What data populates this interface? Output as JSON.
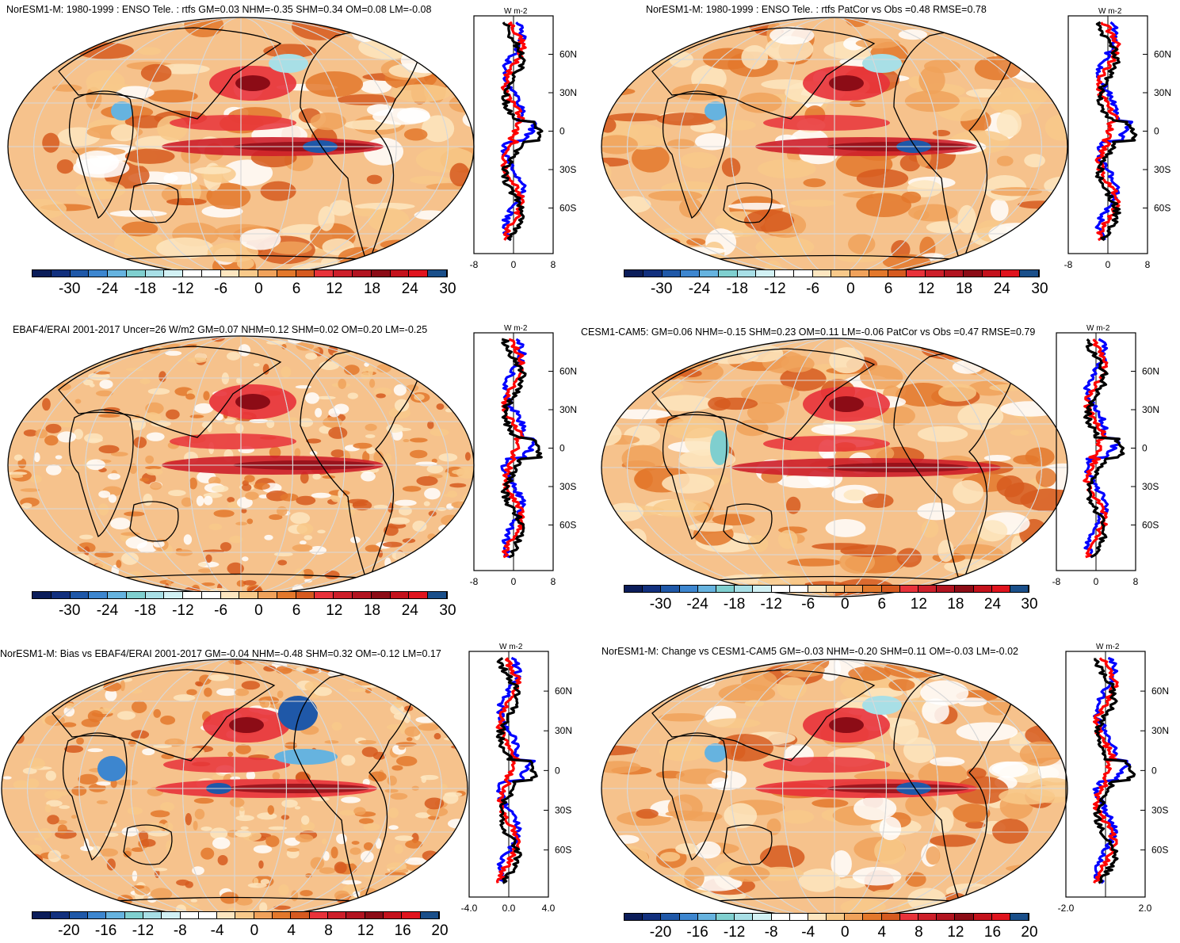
{
  "panels": [
    {
      "id": "p1",
      "title": "NorESM1-M: 1980-1999 : ENSO Tele. : rtfs GM=0.03 NHM=-0.35 SHM=0.34 OM=0.08 LM=-0.08",
      "colorbar_labels": [
        "-30",
        "-24",
        "-18",
        "-12",
        "-6",
        "0",
        "6",
        "12",
        "18",
        "24",
        "30"
      ],
      "zonal_unit": "W m-2",
      "zonal_lat_labels": [
        "60N",
        "30N",
        "0",
        "30S",
        "60S"
      ],
      "zonal_x_labels": [
        "-8",
        "0",
        "8"
      ],
      "zonal_xrange": [
        -8,
        8
      ]
    },
    {
      "id": "p2",
      "title": "NorESM1-M: 1980-1999 : ENSO Tele. : rtfs PatCor vs Obs =0.48 RMSE=0.78",
      "colorbar_labels": [
        "-30",
        "-24",
        "-18",
        "-12",
        "-6",
        "0",
        "6",
        "12",
        "18",
        "24",
        "30"
      ],
      "zonal_unit": "W m-2",
      "zonal_lat_labels": [
        "60N",
        "30N",
        "0",
        "30S",
        "60S"
      ],
      "zonal_x_labels": [
        "-8",
        "0",
        "8"
      ],
      "zonal_xrange": [
        -8,
        8
      ]
    },
    {
      "id": "p3",
      "title": "EBAF4/ERAI 2001-2017 Uncer=26 W/m2 GM=0.07 NHM=0.12 SHM=0.02 OM=0.20 LM=-0.25",
      "colorbar_labels": [
        "-30",
        "-24",
        "-18",
        "-12",
        "-6",
        "0",
        "6",
        "12",
        "18",
        "24",
        "30"
      ],
      "zonal_unit": "W m-2",
      "zonal_lat_labels": [
        "60N",
        "30N",
        "0",
        "30S",
        "60S"
      ],
      "zonal_x_labels": [
        "-8",
        "0",
        "8"
      ],
      "zonal_xrange": [
        -8,
        8
      ]
    },
    {
      "id": "p4",
      "title": "CESM1-CAM5: GM=0.06 NHM=-0.15 SHM=0.23 OM=0.11 LM=-0.06 PatCor vs Obs =0.47 RMSE=0.79",
      "colorbar_labels": [
        "-30",
        "-24",
        "-18",
        "-12",
        "-6",
        "0",
        "6",
        "12",
        "18",
        "24",
        "30"
      ],
      "zonal_unit": "W m-2",
      "zonal_lat_labels": [
        "60N",
        "30N",
        "0",
        "30S",
        "60S"
      ],
      "zonal_x_labels": [
        "-8",
        "0",
        "8"
      ],
      "zonal_xrange": [
        -8,
        8
      ]
    },
    {
      "id": "p5",
      "title": "NorESM1-M: Bias vs EBAF4/ERAI 2001-2017 GM=-0.04 NHM=-0.48 SHM=0.32 OM=-0.12 LM=0.17",
      "colorbar_labels": [
        "-20",
        "-16",
        "-12",
        "-8",
        "-4",
        "0",
        "4",
        "8",
        "12",
        "16",
        "20"
      ],
      "zonal_unit": "W m-2",
      "zonal_lat_labels": [
        "60N",
        "30N",
        "0",
        "30S",
        "60S"
      ],
      "zonal_x_labels": [
        "-4.0",
        "0.0",
        "4.0"
      ],
      "zonal_xrange": [
        -4,
        4
      ]
    },
    {
      "id": "p6",
      "title": "NorESM1-M: Change vs CESM1-CAM5 GM=-0.03 NHM=-0.20 SHM=0.11 OM=-0.03 LM=-0.02",
      "colorbar_labels": [
        "-20",
        "-16",
        "-12",
        "-8",
        "-4",
        "0",
        "4",
        "8",
        "12",
        "16",
        "20"
      ],
      "zonal_unit": "W m-2",
      "zonal_lat_labels": [
        "60N",
        "30N",
        "0",
        "30S",
        "60S"
      ],
      "zonal_x_labels": [
        "-2.0",
        "2.0"
      ],
      "zonal_xrange": [
        -2,
        2
      ]
    }
  ],
  "colors": {
    "palette": [
      "#0b1d5a",
      "#12307e",
      "#1f58a8",
      "#3d86cf",
      "#66b3df",
      "#7fcfcf",
      "#a8dfe6",
      "#d2f1f4",
      "#ffffff",
      "#ffffff",
      "#fde6c0",
      "#f8c98a",
      "#f0a25b",
      "#e3782b",
      "#d65a1f",
      "#e8323a",
      "#cd1f2a",
      "#b21420",
      "#8c0c16",
      "#c4121c",
      "#e0141e",
      "#1a4f8a"
    ],
    "series": [
      "#0000ff",
      "#ff0000",
      "#000000"
    ]
  }
}
